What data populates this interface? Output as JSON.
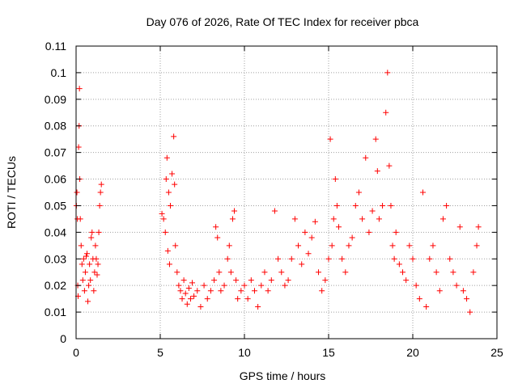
{
  "chart_data": {
    "type": "scatter",
    "title": "Day 076 of 2026, Rate Of TEC Index for receiver pbca",
    "xlabel": "GPS time / hours",
    "ylabel": "ROTI / TECUs",
    "xlim": [
      0,
      25
    ],
    "ylim": [
      0,
      0.11
    ],
    "x_ticks": [
      0,
      5,
      10,
      15,
      20,
      25
    ],
    "x_tick_labels": [
      "0",
      "5",
      "10",
      "15",
      "20",
      "25"
    ],
    "y_ticks": [
      0,
      0.01,
      0.02,
      0.03,
      0.04,
      0.05,
      0.06,
      0.07,
      0.08,
      0.09,
      0.1,
      0.11
    ],
    "y_tick_labels": [
      "0",
      "0.01",
      "0.02",
      "0.03",
      "0.04",
      "0.05",
      "0.06",
      "0.07",
      "0.08",
      "0.09",
      "0.1",
      "0.11"
    ],
    "grid": true,
    "marker": "+",
    "color": "#ff0000",
    "series": [
      {
        "name": "ROTI",
        "points": [
          [
            0.02,
            0.05
          ],
          [
            0.05,
            0.055
          ],
          [
            0.08,
            0.045
          ],
          [
            0.1,
            0.02
          ],
          [
            0.12,
            0.016
          ],
          [
            0.15,
            0.072
          ],
          [
            0.18,
            0.08
          ],
          [
            0.2,
            0.094
          ],
          [
            0.22,
            0.06
          ],
          [
            0.25,
            0.045
          ],
          [
            0.3,
            0.035
          ],
          [
            0.35,
            0.028
          ],
          [
            0.4,
            0.022
          ],
          [
            0.45,
            0.03
          ],
          [
            0.5,
            0.018
          ],
          [
            0.55,
            0.025
          ],
          [
            0.6,
            0.031
          ],
          [
            0.65,
            0.032
          ],
          [
            0.7,
            0.014
          ],
          [
            0.75,
            0.02
          ],
          [
            0.8,
            0.028
          ],
          [
            0.85,
            0.022
          ],
          [
            0.9,
            0.038
          ],
          [
            0.95,
            0.04
          ],
          [
            1.0,
            0.03
          ],
          [
            1.05,
            0.018
          ],
          [
            1.1,
            0.025
          ],
          [
            1.15,
            0.035
          ],
          [
            1.2,
            0.03
          ],
          [
            1.25,
            0.024
          ],
          [
            1.3,
            0.028
          ],
          [
            1.35,
            0.04
          ],
          [
            1.4,
            0.05
          ],
          [
            1.45,
            0.055
          ],
          [
            1.5,
            0.058
          ],
          [
            5.1,
            0.047
          ],
          [
            5.2,
            0.045
          ],
          [
            5.3,
            0.04
          ],
          [
            5.35,
            0.06
          ],
          [
            5.4,
            0.068
          ],
          [
            5.45,
            0.033
          ],
          [
            5.5,
            0.055
          ],
          [
            5.55,
            0.028
          ],
          [
            5.6,
            0.05
          ],
          [
            5.7,
            0.062
          ],
          [
            5.8,
            0.076
          ],
          [
            5.85,
            0.058
          ],
          [
            5.9,
            0.035
          ],
          [
            6.0,
            0.025
          ],
          [
            6.1,
            0.02
          ],
          [
            6.2,
            0.018
          ],
          [
            6.3,
            0.015
          ],
          [
            6.4,
            0.022
          ],
          [
            6.5,
            0.017
          ],
          [
            6.6,
            0.013
          ],
          [
            6.7,
            0.019
          ],
          [
            6.8,
            0.015
          ],
          [
            6.9,
            0.021
          ],
          [
            7.0,
            0.016
          ],
          [
            7.2,
            0.018
          ],
          [
            7.4,
            0.012
          ],
          [
            7.6,
            0.02
          ],
          [
            7.8,
            0.015
          ],
          [
            8.0,
            0.018
          ],
          [
            8.2,
            0.022
          ],
          [
            8.3,
            0.042
          ],
          [
            8.4,
            0.038
          ],
          [
            8.5,
            0.025
          ],
          [
            8.6,
            0.018
          ],
          [
            8.8,
            0.02
          ],
          [
            9.0,
            0.03
          ],
          [
            9.1,
            0.035
          ],
          [
            9.2,
            0.025
          ],
          [
            9.3,
            0.045
          ],
          [
            9.4,
            0.048
          ],
          [
            9.5,
            0.022
          ],
          [
            9.6,
            0.015
          ],
          [
            9.8,
            0.018
          ],
          [
            10.0,
            0.02
          ],
          [
            10.2,
            0.015
          ],
          [
            10.4,
            0.022
          ],
          [
            10.6,
            0.018
          ],
          [
            10.8,
            0.012
          ],
          [
            11.0,
            0.02
          ],
          [
            11.2,
            0.025
          ],
          [
            11.4,
            0.018
          ],
          [
            11.6,
            0.022
          ],
          [
            11.8,
            0.048
          ],
          [
            12.0,
            0.03
          ],
          [
            12.2,
            0.025
          ],
          [
            12.4,
            0.02
          ],
          [
            12.6,
            0.022
          ],
          [
            12.8,
            0.03
          ],
          [
            13.0,
            0.045
          ],
          [
            13.2,
            0.035
          ],
          [
            13.4,
            0.028
          ],
          [
            13.6,
            0.04
          ],
          [
            13.8,
            0.032
          ],
          [
            14.0,
            0.038
          ],
          [
            14.2,
            0.044
          ],
          [
            14.4,
            0.025
          ],
          [
            14.6,
            0.018
          ],
          [
            14.8,
            0.022
          ],
          [
            15.0,
            0.03
          ],
          [
            15.1,
            0.075
          ],
          [
            15.2,
            0.035
          ],
          [
            15.3,
            0.045
          ],
          [
            15.4,
            0.06
          ],
          [
            15.5,
            0.05
          ],
          [
            15.6,
            0.042
          ],
          [
            15.8,
            0.03
          ],
          [
            16.0,
            0.025
          ],
          [
            16.2,
            0.035
          ],
          [
            16.4,
            0.038
          ],
          [
            16.6,
            0.05
          ],
          [
            16.8,
            0.055
          ],
          [
            17.0,
            0.045
          ],
          [
            17.2,
            0.068
          ],
          [
            17.4,
            0.04
          ],
          [
            17.6,
            0.048
          ],
          [
            17.8,
            0.075
          ],
          [
            17.9,
            0.063
          ],
          [
            18.0,
            0.045
          ],
          [
            18.2,
            0.05
          ],
          [
            18.4,
            0.085
          ],
          [
            18.5,
            0.1
          ],
          [
            18.6,
            0.065
          ],
          [
            18.7,
            0.05
          ],
          [
            18.8,
            0.035
          ],
          [
            18.9,
            0.03
          ],
          [
            19.0,
            0.04
          ],
          [
            19.2,
            0.028
          ],
          [
            19.4,
            0.025
          ],
          [
            19.6,
            0.022
          ],
          [
            19.8,
            0.035
          ],
          [
            20.0,
            0.03
          ],
          [
            20.2,
            0.02
          ],
          [
            20.4,
            0.015
          ],
          [
            20.6,
            0.055
          ],
          [
            20.8,
            0.012
          ],
          [
            21.0,
            0.03
          ],
          [
            21.2,
            0.035
          ],
          [
            21.4,
            0.025
          ],
          [
            21.6,
            0.018
          ],
          [
            21.8,
            0.045
          ],
          [
            22.0,
            0.05
          ],
          [
            22.2,
            0.03
          ],
          [
            22.4,
            0.025
          ],
          [
            22.6,
            0.02
          ],
          [
            22.8,
            0.042
          ],
          [
            23.0,
            0.018
          ],
          [
            23.2,
            0.015
          ],
          [
            23.4,
            0.01
          ],
          [
            23.6,
            0.025
          ],
          [
            23.8,
            0.035
          ],
          [
            23.9,
            0.042
          ]
        ]
      }
    ]
  }
}
